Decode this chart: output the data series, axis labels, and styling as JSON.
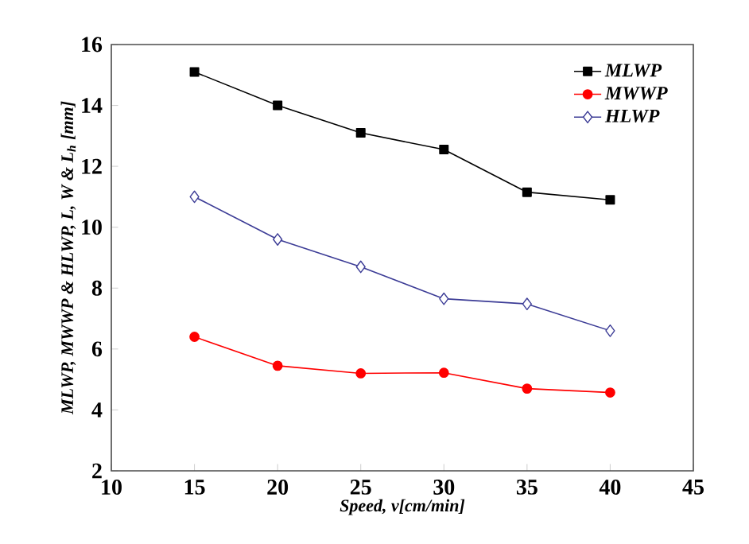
{
  "chart_data": {
    "type": "line",
    "xlabel": "Speed, v[cm/min]",
    "ylabel": "MLWP, MWWP & HLWP, L, W & L$_{h}$ [mm]",
    "x": [
      15,
      20,
      25,
      30,
      35,
      40
    ],
    "xlim": [
      10,
      45
    ],
    "xticks": [
      10,
      15,
      20,
      25,
      30,
      35,
      40,
      45
    ],
    "ylim": [
      2,
      16
    ],
    "yticks": [
      2,
      4,
      6,
      8,
      10,
      12,
      14,
      16
    ],
    "legend": "top right",
    "grid": false,
    "line_style": "solid",
    "series": [
      {
        "name": "MLWP",
        "color": "#000000",
        "marker": "square",
        "values": [
          15.1,
          14.0,
          13.1,
          12.55,
          11.15,
          10.9
        ]
      },
      {
        "name": "MWWP",
        "color": "#ff0000",
        "marker": "circle",
        "values": [
          6.4,
          5.45,
          5.2,
          5.22,
          4.7,
          4.57
        ]
      },
      {
        "name": "HLWP",
        "color": "#3c3c96",
        "marker": "diamond",
        "values": [
          11.0,
          9.6,
          8.7,
          7.65,
          7.48,
          6.6
        ]
      }
    ]
  }
}
